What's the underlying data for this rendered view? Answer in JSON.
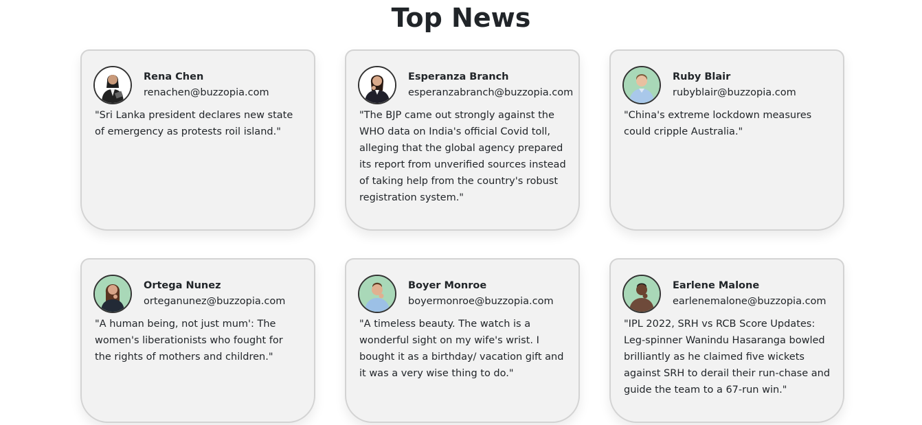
{
  "page": {
    "title": "Top News"
  },
  "cards": [
    {
      "name": "Rena Chen",
      "email": "renachen@buzzopia.com",
      "headline": "\"Sri Lanka president declares new state of emergency as protests roil island.\"",
      "avatar_icon": "person-woman-suit-icon",
      "avatar_bg": "#ffffff"
    },
    {
      "name": "Esperanza Branch",
      "email": "esperanzabranch@buzzopia.com",
      "headline": "\"The BJP came out strongly against the WHO data on India's official Covid toll, alleging that the global agency prepared its report from unverified sources instead of taking help from the country's robust registration system.\"",
      "avatar_icon": "person-woman-thinking-icon",
      "avatar_bg": "#ffffff"
    },
    {
      "name": "Ruby Blair",
      "email": "rubyblair@buzzopia.com",
      "headline": "\"China's extreme lockdown measures could cripple Australia.\"",
      "avatar_icon": "person-man-shirt-icon",
      "avatar_bg": "#a9d8b8"
    },
    {
      "name": "Ortega Nunez",
      "email": "orteganunez@buzzopia.com",
      "headline": "\"A human being, not just mum': The women's liberationists who fought for the rights of mothers and children.\"",
      "avatar_icon": "person-woman-thinking-icon",
      "avatar_bg": "#a9d8b8"
    },
    {
      "name": "Boyer Monroe",
      "email": "boyermonroe@buzzopia.com",
      "headline": "\"A timeless beauty. The watch is a wonderful sight on my wife's wrist. I bought it as a birthday/ vacation gift and it was a very wise thing to do.\"",
      "avatar_icon": "person-man-thinking-icon",
      "avatar_bg": "#a9d8b8"
    },
    {
      "name": "Earlene Malone",
      "email": "earlenemalone@buzzopia.com",
      "headline": "\"IPL 2022, SRH vs RCB Score Updates: Leg-spinner Wanindu Hasaranga bowled brilliantly as he claimed five wickets against SRH to derail their run-chase and guide the team to a 67-run win.\"",
      "avatar_icon": "person-man-thinking-icon",
      "avatar_bg": "#a9d8b8"
    }
  ],
  "colors": {
    "card_bg": "#f2f2f2",
    "card_border": "#d3d3d3",
    "text": "#212529",
    "avatar_green": "#a9d8b8"
  }
}
